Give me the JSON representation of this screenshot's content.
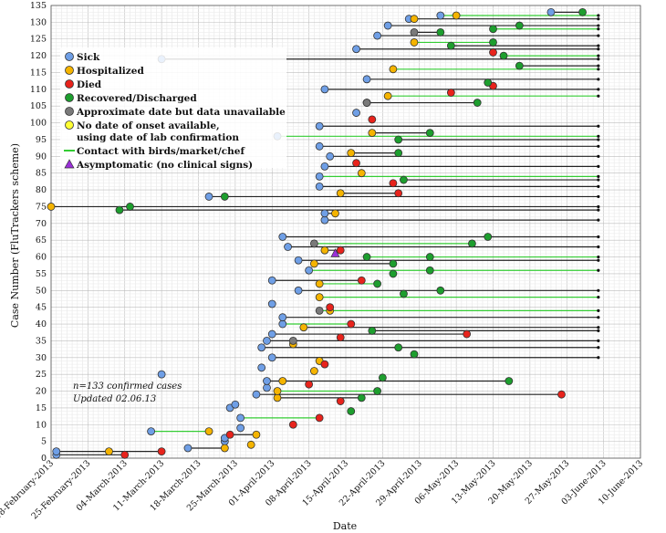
{
  "chart_data": {
    "type": "scatter",
    "xlabel": "Date",
    "ylabel": "Case Number (FluTrackers scheme)",
    "xlim": [
      "2013-02-18",
      "2013-06-10"
    ],
    "ylim": [
      0,
      135
    ],
    "grid": true,
    "legend_placement": "top-left",
    "x_ticks": [
      "18-February-2013",
      "25-February-2013",
      "04-March-2013",
      "11-March-2013",
      "18-March-2013",
      "25-March-2013",
      "01-April-2013",
      "08-April-2013",
      "15-April-2013",
      "22-April-2013",
      "29-April-2013",
      "06-May-2013",
      "13-May-2013",
      "20-May-2013",
      "27-May-2013",
      "03-June-2013",
      "10-June-2013"
    ],
    "y_ticks": [
      0,
      5,
      10,
      15,
      20,
      25,
      30,
      35,
      40,
      45,
      50,
      55,
      60,
      65,
      70,
      75,
      80,
      85,
      90,
      95,
      100,
      105,
      110,
      115,
      120,
      125,
      130,
      135
    ],
    "legend": [
      {
        "key": "sick",
        "label": "Sick",
        "marker": "circle",
        "color": "#6f9fe6"
      },
      {
        "key": "hospitalized",
        "label": "Hospitalized",
        "marker": "circle",
        "color": "#f5b400"
      },
      {
        "key": "died",
        "label": "Died",
        "marker": "circle",
        "color": "#e8231c"
      },
      {
        "key": "recovered",
        "label": "Recovered/Discharged",
        "marker": "circle",
        "color": "#1d9e2e"
      },
      {
        "key": "approx",
        "label": "Approximate date but data unavailable",
        "marker": "circle",
        "color": "#7a7a7a"
      },
      {
        "key": "nodate",
        "label": "No date of onset available,",
        "label2": "using date of lab confirmation",
        "marker": "circle",
        "color": "#ffff33"
      },
      {
        "key": "contact",
        "label": "Contact with birds/market/chef",
        "marker": "line",
        "color": "#33cc33"
      },
      {
        "key": "asym",
        "label": "Asymptomatic (no clinical signs)",
        "marker": "triangle",
        "color": "#9b30d9"
      }
    ],
    "annotations": [
      "n=133 confirmed cases",
      "Updated 02.06.13"
    ],
    "series": [
      {
        "name": "Sick",
        "points": [
          [
            1,
            "2013-02-19"
          ],
          [
            2,
            "2013-02-19"
          ],
          [
            3,
            "2013-03-16"
          ],
          [
            5,
            "2013-03-23"
          ],
          [
            6,
            "2013-03-23"
          ],
          [
            8,
            "2013-03-09"
          ],
          [
            9,
            "2013-03-26"
          ],
          [
            12,
            "2013-03-26"
          ],
          [
            15,
            "2013-03-24"
          ],
          [
            16,
            "2013-03-25"
          ],
          [
            19,
            "2013-03-29"
          ],
          [
            21,
            "2013-03-31"
          ],
          [
            23,
            "2013-03-31"
          ],
          [
            25,
            "2013-03-11"
          ],
          [
            27,
            "2013-03-30"
          ],
          [
            30,
            "2013-04-01"
          ],
          [
            33,
            "2013-03-30"
          ],
          [
            35,
            "2013-03-31"
          ],
          [
            37,
            "2013-04-01"
          ],
          [
            40,
            "2013-04-03"
          ],
          [
            42,
            "2013-04-03"
          ],
          [
            46,
            "2013-04-01"
          ],
          [
            50,
            "2013-04-06"
          ],
          [
            53,
            "2013-04-01"
          ],
          [
            56,
            "2013-04-08"
          ],
          [
            59,
            "2013-04-06"
          ],
          [
            63,
            "2013-04-04"
          ],
          [
            66,
            "2013-04-03"
          ],
          [
            71,
            "2013-04-11"
          ],
          [
            73,
            "2013-04-11"
          ],
          [
            78,
            "2013-03-20"
          ],
          [
            81,
            "2013-04-10"
          ],
          [
            84,
            "2013-04-10"
          ],
          [
            87,
            "2013-04-11"
          ],
          [
            90,
            "2013-04-12"
          ],
          [
            93,
            "2013-04-10"
          ],
          [
            96,
            "2013-04-02"
          ],
          [
            99,
            "2013-04-10"
          ],
          [
            103,
            "2013-04-17"
          ],
          [
            106,
            "2013-04-19"
          ],
          [
            110,
            "2013-04-11"
          ],
          [
            113,
            "2013-04-19"
          ],
          [
            119,
            "2013-03-11"
          ],
          [
            122,
            "2013-04-17"
          ],
          [
            126,
            "2013-04-21"
          ],
          [
            129,
            "2013-04-23"
          ],
          [
            131,
            "2013-04-27"
          ],
          [
            132,
            "2013-05-03"
          ],
          [
            133,
            "2013-05-24"
          ]
        ]
      },
      {
        "name": "Hospitalized",
        "points": [
          [
            2,
            "2013-03-01"
          ],
          [
            3,
            "2013-03-23"
          ],
          [
            4,
            "2013-03-28"
          ],
          [
            7,
            "2013-03-29"
          ],
          [
            8,
            "2013-03-20"
          ],
          [
            18,
            "2013-04-02"
          ],
          [
            20,
            "2013-04-02"
          ],
          [
            23,
            "2013-04-03"
          ],
          [
            26,
            "2013-04-09"
          ],
          [
            29,
            "2013-04-10"
          ],
          [
            34,
            "2013-04-05"
          ],
          [
            39,
            "2013-04-07"
          ],
          [
            44,
            "2013-04-12"
          ],
          [
            48,
            "2013-04-10"
          ],
          [
            52,
            "2013-04-10"
          ],
          [
            58,
            "2013-04-09"
          ],
          [
            62,
            "2013-04-11"
          ],
          [
            73,
            "2013-04-13"
          ],
          [
            75,
            "2013-02-18"
          ],
          [
            79,
            "2013-04-14"
          ],
          [
            85,
            "2013-04-18"
          ],
          [
            91,
            "2013-04-16"
          ],
          [
            97,
            "2013-04-20"
          ],
          [
            108,
            "2013-04-23"
          ],
          [
            116,
            "2013-04-24"
          ],
          [
            124,
            "2013-04-28"
          ],
          [
            131,
            "2013-04-28"
          ],
          [
            132,
            "2013-05-06"
          ]
        ]
      },
      {
        "name": "Died",
        "points": [
          [
            1,
            "2013-03-04"
          ],
          [
            2,
            "2013-03-11"
          ],
          [
            7,
            "2013-03-24"
          ],
          [
            10,
            "2013-04-05"
          ],
          [
            12,
            "2013-04-10"
          ],
          [
            17,
            "2013-04-14"
          ],
          [
            22,
            "2013-04-08"
          ],
          [
            28,
            "2013-04-11"
          ],
          [
            36,
            "2013-04-14"
          ],
          [
            37,
            "2013-05-08"
          ],
          [
            40,
            "2013-04-16"
          ],
          [
            45,
            "2013-04-12"
          ],
          [
            53,
            "2013-04-18"
          ],
          [
            62,
            "2013-04-14"
          ],
          [
            79,
            "2013-04-25"
          ],
          [
            82,
            "2013-04-24"
          ],
          [
            88,
            "2013-04-17"
          ],
          [
            101,
            "2013-04-20"
          ],
          [
            109,
            "2013-05-05"
          ],
          [
            111,
            "2013-05-13"
          ],
          [
            121,
            "2013-05-13"
          ],
          [
            19,
            "2013-05-26"
          ]
        ]
      },
      {
        "name": "Recovered/Discharged",
        "points": [
          [
            74,
            "2013-03-03"
          ],
          [
            75,
            "2013-03-05"
          ],
          [
            78,
            "2013-03-23"
          ],
          [
            14,
            "2013-04-16"
          ],
          [
            18,
            "2013-04-18"
          ],
          [
            20,
            "2013-04-21"
          ],
          [
            24,
            "2013-04-22"
          ],
          [
            31,
            "2013-04-28"
          ],
          [
            33,
            "2013-04-25"
          ],
          [
            38,
            "2013-04-20"
          ],
          [
            49,
            "2013-04-26"
          ],
          [
            50,
            "2013-05-03"
          ],
          [
            52,
            "2013-04-21"
          ],
          [
            55,
            "2013-04-24"
          ],
          [
            56,
            "2013-05-01"
          ],
          [
            58,
            "2013-04-24"
          ],
          [
            60,
            "2013-04-19"
          ],
          [
            60,
            "2013-05-01"
          ],
          [
            64,
            "2013-05-09"
          ],
          [
            66,
            "2013-05-12"
          ],
          [
            83,
            "2013-04-26"
          ],
          [
            91,
            "2013-04-25"
          ],
          [
            95,
            "2013-04-25"
          ],
          [
            97,
            "2013-05-01"
          ],
          [
            106,
            "2013-05-10"
          ],
          [
            112,
            "2013-05-12"
          ],
          [
            117,
            "2013-05-18"
          ],
          [
            120,
            "2013-05-15"
          ],
          [
            123,
            "2013-05-05"
          ],
          [
            124,
            "2013-05-13"
          ],
          [
            127,
            "2013-05-03"
          ],
          [
            128,
            "2013-05-13"
          ],
          [
            129,
            "2013-05-18"
          ],
          [
            133,
            "2013-05-30"
          ],
          [
            23,
            "2013-05-16"
          ]
        ]
      },
      {
        "name": "Approximate date but data unavailable",
        "points": [
          [
            35,
            "2013-04-05"
          ],
          [
            44,
            "2013-04-10"
          ],
          [
            64,
            "2013-04-09"
          ],
          [
            106,
            "2013-04-19"
          ],
          [
            127,
            "2013-04-28"
          ]
        ]
      },
      {
        "name": "Asymptomatic (no clinical signs)",
        "points": [
          [
            61,
            "2013-04-13"
          ]
        ]
      }
    ]
  }
}
